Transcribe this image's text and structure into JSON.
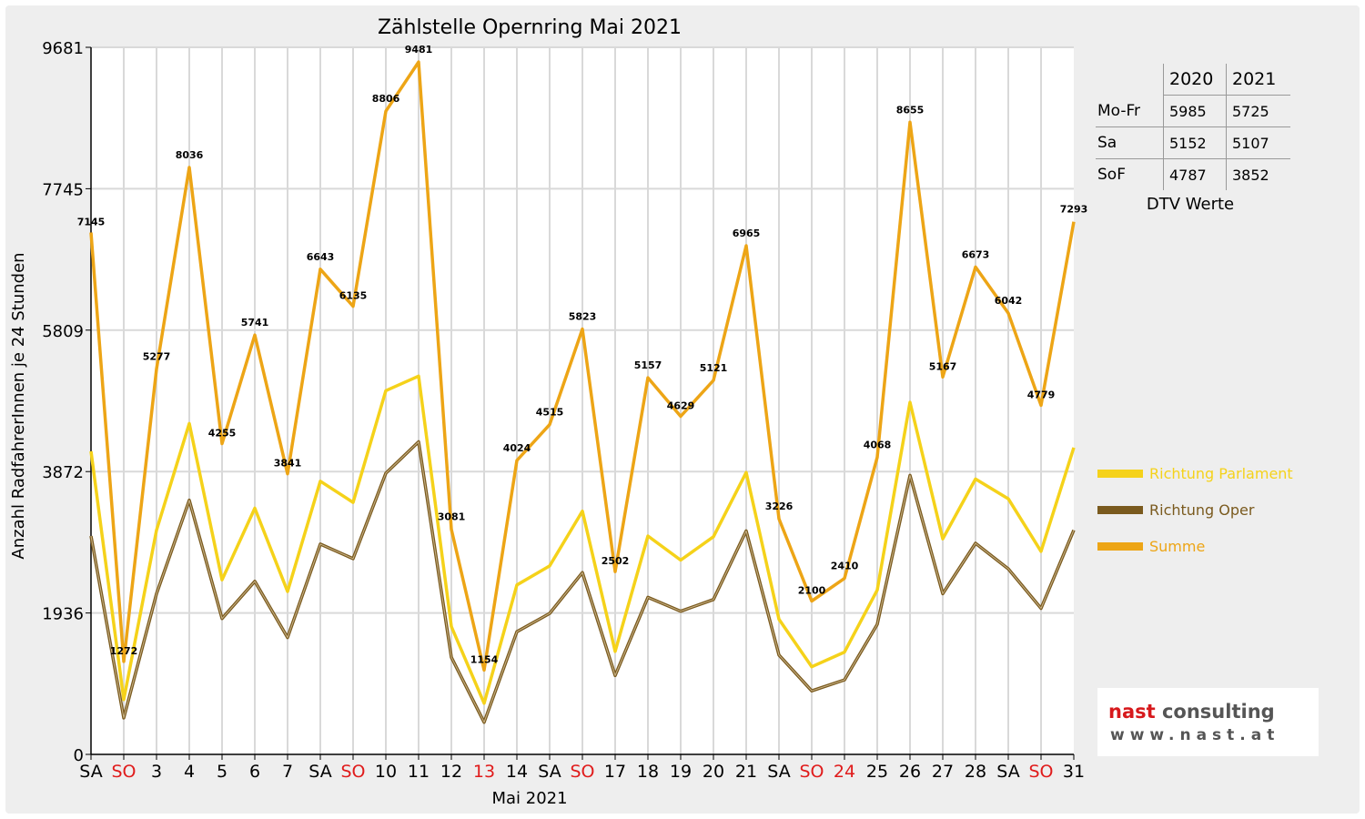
{
  "chart_data": {
    "type": "line",
    "title": "Zählstelle Opernring Mai 2021",
    "xlabel": "Mai 2021",
    "ylabel": "Anzahl RadfahrerInnen je 24 Stunden",
    "ylim": [
      0,
      9681
    ],
    "yticks": [
      0,
      1936,
      3872,
      5809,
      7745,
      9681
    ],
    "grid": true,
    "legend_position": "right",
    "categories": [
      "SA",
      "SO",
      "3",
      "4",
      "5",
      "6",
      "7",
      "SA",
      "SO",
      "10",
      "11",
      "12",
      "13",
      "14",
      "SA",
      "SO",
      "17",
      "18",
      "19",
      "20",
      "21",
      "SA",
      "SO",
      "24",
      "25",
      "26",
      "27",
      "28",
      "SA",
      "SO",
      "31"
    ],
    "red_categories": [
      1,
      8,
      12,
      15,
      22,
      23,
      29
    ],
    "series": [
      {
        "name": "Richtung Parlament",
        "color": "#f5d21a",
        "values": [
          4150,
          750,
          3070,
          4530,
          2390,
          3370,
          2230,
          3740,
          3450,
          4980,
          5180,
          1750,
          700,
          2320,
          2580,
          3330,
          1410,
          2990,
          2660,
          2980,
          3860,
          1850,
          1200,
          1400,
          2250,
          4820,
          2950,
          3770,
          3500,
          2780,
          4200
        ]
      },
      {
        "name": "Richtung Oper",
        "color": "#7a5a1e",
        "values": [
          2990,
          500,
          2200,
          3480,
          1860,
          2370,
          1600,
          2880,
          2680,
          3850,
          4280,
          1330,
          440,
          1680,
          1930,
          2490,
          1080,
          2150,
          1960,
          2120,
          3060,
          1360,
          870,
          1020,
          1780,
          3820,
          2200,
          2890,
          2540,
          2000,
          3070
        ]
      },
      {
        "name": "Summe",
        "color": "#eda516",
        "values": [
          7145,
          1272,
          5277,
          8036,
          4255,
          5741,
          3841,
          6643,
          6135,
          8806,
          9481,
          3081,
          1154,
          4024,
          4515,
          5823,
          2502,
          5157,
          4629,
          5121,
          6965,
          3226,
          2100,
          2410,
          4068,
          8655,
          5167,
          6673,
          6042,
          4779,
          7293
        ]
      }
    ],
    "data_labels": [
      "7145",
      "1272",
      "5277",
      "8036",
      "4255",
      "5741",
      "3841",
      "6643",
      "6135",
      "8806",
      "9481",
      "3081",
      "1154",
      "4024",
      "4515",
      "5823",
      "2502",
      "5157",
      "4629",
      "5121",
      "6965",
      "3226",
      "2100",
      "2410",
      "4068",
      "8655",
      "5167",
      "6673",
      "6042",
      "4779",
      "7293"
    ]
  },
  "dtv_table": {
    "header": [
      "",
      "2020",
      "2021"
    ],
    "rows": [
      {
        "label": "Mo-Fr",
        "v2020": "5985",
        "v2021": "5725"
      },
      {
        "label": "Sa",
        "v2020": "5152",
        "v2021": "5107"
      },
      {
        "label": "SoF",
        "v2020": "4787",
        "v2021": "3852"
      }
    ],
    "caption": "DTV Werte"
  },
  "logo": {
    "word1": "nast",
    "word2": "consulting",
    "url": "www.nast.at",
    "accent": "#d7191c"
  }
}
